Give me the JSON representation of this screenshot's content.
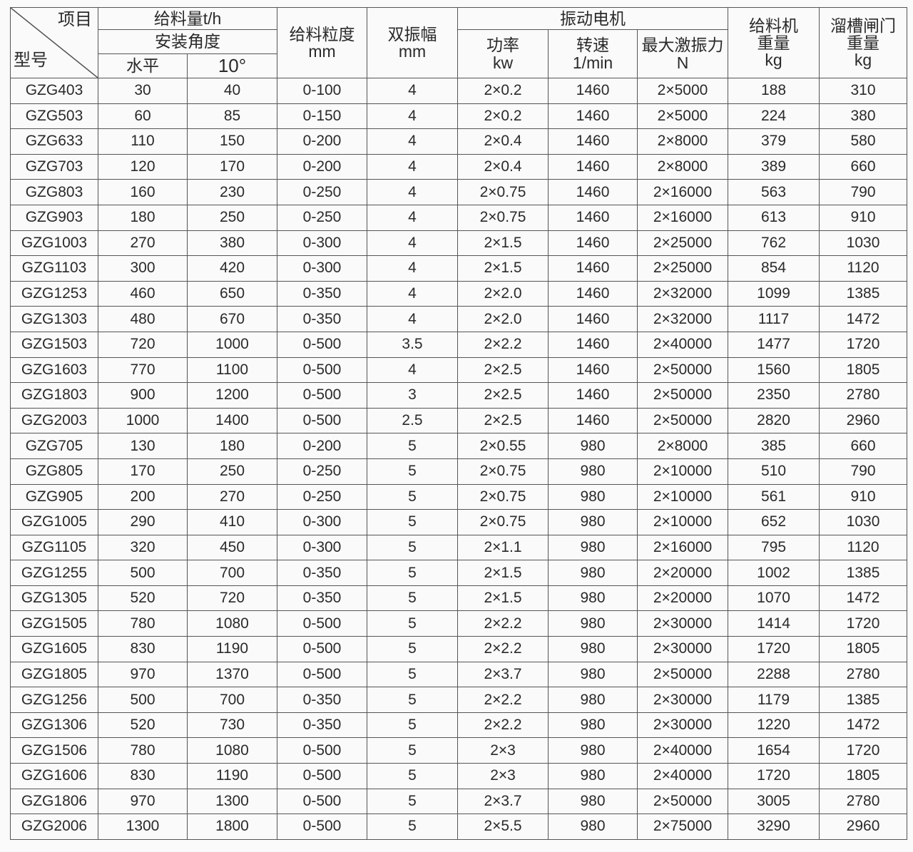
{
  "header": {
    "item": "项目",
    "model": "型号",
    "feed_rate": "给料量t/h",
    "install_angle": "安装角度",
    "horizontal": "水平",
    "ten_deg": "10°",
    "feed_size": "给料粒度",
    "feed_size_unit": "mm",
    "amplitude": "双振幅",
    "amplitude_unit": "mm",
    "motor": "振动电机",
    "power": "功率",
    "power_unit": "kw",
    "speed": "转速",
    "speed_unit": "1/min",
    "force": "最大激振力",
    "force_unit": "N",
    "feeder_weight_1": "给料机",
    "feeder_weight_2": "重量",
    "feeder_weight_unit": "kg",
    "gate_weight_1": "溜槽闸门",
    "gate_weight_2": "重量",
    "gate_weight_unit": "kg"
  },
  "rows": [
    [
      "GZG403",
      "30",
      "40",
      "0-100",
      "4",
      "2×0.2",
      "1460",
      "2×5000",
      "188",
      "310"
    ],
    [
      "GZG503",
      "60",
      "85",
      "0-150",
      "4",
      "2×0.2",
      "1460",
      "2×5000",
      "224",
      "380"
    ],
    [
      "GZG633",
      "110",
      "150",
      "0-200",
      "4",
      "2×0.4",
      "1460",
      "2×8000",
      "379",
      "580"
    ],
    [
      "GZG703",
      "120",
      "170",
      "0-200",
      "4",
      "2×0.4",
      "1460",
      "2×8000",
      "389",
      "660"
    ],
    [
      "GZG803",
      "160",
      "230",
      "0-250",
      "4",
      "2×0.75",
      "1460",
      "2×16000",
      "563",
      "790"
    ],
    [
      "GZG903",
      "180",
      "250",
      "0-250",
      "4",
      "2×0.75",
      "1460",
      "2×16000",
      "613",
      "910"
    ],
    [
      "GZG1003",
      "270",
      "380",
      "0-300",
      "4",
      "2×1.5",
      "1460",
      "2×25000",
      "762",
      "1030"
    ],
    [
      "GZG1103",
      "300",
      "420",
      "0-300",
      "4",
      "2×1.5",
      "1460",
      "2×25000",
      "854",
      "1120"
    ],
    [
      "GZG1253",
      "460",
      "650",
      "0-350",
      "4",
      "2×2.0",
      "1460",
      "2×32000",
      "1099",
      "1385"
    ],
    [
      "GZG1303",
      "480",
      "670",
      "0-350",
      "4",
      "2×2.0",
      "1460",
      "2×32000",
      "1117",
      "1472"
    ],
    [
      "GZG1503",
      "720",
      "1000",
      "0-500",
      "3.5",
      "2×2.2",
      "1460",
      "2×40000",
      "1477",
      "1720"
    ],
    [
      "GZG1603",
      "770",
      "1100",
      "0-500",
      "4",
      "2×2.5",
      "1460",
      "2×50000",
      "1560",
      "1805"
    ],
    [
      "GZG1803",
      "900",
      "1200",
      "0-500",
      "3",
      "2×2.5",
      "1460",
      "2×50000",
      "2350",
      "2780"
    ],
    [
      "GZG2003",
      "1000",
      "1400",
      "0-500",
      "2.5",
      "2×2.5",
      "1460",
      "2×50000",
      "2820",
      "2960"
    ],
    [
      "GZG705",
      "130",
      "180",
      "0-200",
      "5",
      "2×0.55",
      "980",
      "2×8000",
      "385",
      "660"
    ],
    [
      "GZG805",
      "170",
      "250",
      "0-250",
      "5",
      "2×0.75",
      "980",
      "2×10000",
      "510",
      "790"
    ],
    [
      "GZG905",
      "200",
      "270",
      "0-250",
      "5",
      "2×0.75",
      "980",
      "2×10000",
      "561",
      "910"
    ],
    [
      "GZG1005",
      "290",
      "410",
      "0-300",
      "5",
      "2×0.75",
      "980",
      "2×10000",
      "652",
      "1030"
    ],
    [
      "GZG1105",
      "320",
      "450",
      "0-300",
      "5",
      "2×1.1",
      "980",
      "2×16000",
      "795",
      "1120"
    ],
    [
      "GZG1255",
      "500",
      "700",
      "0-350",
      "5",
      "2×1.5",
      "980",
      "2×20000",
      "1002",
      "1385"
    ],
    [
      "GZG1305",
      "520",
      "720",
      "0-350",
      "5",
      "2×1.5",
      "980",
      "2×20000",
      "1070",
      "1472"
    ],
    [
      "GZG1505",
      "780",
      "1080",
      "0-500",
      "5",
      "2×2.2",
      "980",
      "2×30000",
      "1414",
      "1720"
    ],
    [
      "GZG1605",
      "830",
      "1190",
      "0-500",
      "5",
      "2×2.2",
      "980",
      "2×30000",
      "1720",
      "1805"
    ],
    [
      "GZG1805",
      "970",
      "1370",
      "0-500",
      "5",
      "2×3.7",
      "980",
      "2×50000",
      "2288",
      "2780"
    ],
    [
      "GZG1256",
      "500",
      "700",
      "0-350",
      "5",
      "2×2.2",
      "980",
      "2×30000",
      "1179",
      "1385"
    ],
    [
      "GZG1306",
      "520",
      "730",
      "0-350",
      "5",
      "2×2.2",
      "980",
      "2×30000",
      "1220",
      "1472"
    ],
    [
      "GZG1506",
      "780",
      "1080",
      "0-500",
      "5",
      "2×3",
      "980",
      "2×40000",
      "1654",
      "1720"
    ],
    [
      "GZG1606",
      "830",
      "1190",
      "0-500",
      "5",
      "2×3",
      "980",
      "2×40000",
      "1720",
      "1805"
    ],
    [
      "GZG1806",
      "970",
      "1300",
      "0-500",
      "5",
      "2×3.7",
      "980",
      "2×50000",
      "3005",
      "2780"
    ],
    [
      "GZG2006",
      "1300",
      "1800",
      "0-500",
      "5",
      "2×5.5",
      "980",
      "2×75000",
      "3290",
      "2960"
    ]
  ]
}
